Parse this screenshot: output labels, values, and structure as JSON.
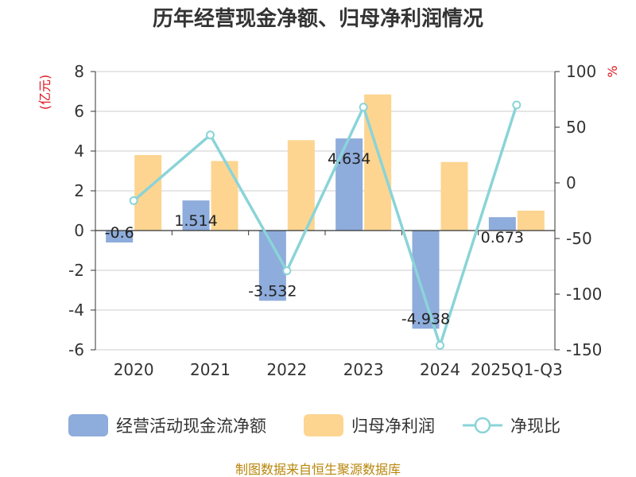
{
  "chart_data": {
    "type": "bar",
    "title": "历年经营现金净额、归母净利润情况",
    "categories": [
      "2020",
      "2021",
      "2022",
      "2023",
      "2024",
      "2025Q1-Q3"
    ],
    "left_axis": {
      "unit": "(亿元)",
      "ylim": [
        -6,
        8
      ],
      "ticks": [
        "8",
        "6",
        "4",
        "2",
        "0",
        "-2",
        "-4",
        "-6"
      ],
      "tick_values": [
        8,
        6,
        4,
        2,
        0,
        -2,
        -4,
        -6
      ]
    },
    "right_axis": {
      "unit": "%",
      "ylim": [
        -150,
        100
      ],
      "ticks": [
        "100",
        "50",
        "0",
        "-50",
        "-100",
        "-150"
      ],
      "tick_values": [
        100,
        50,
        0,
        -50,
        -100,
        -150
      ]
    },
    "series": [
      {
        "name": "经营活动现金流净额",
        "type": "bar",
        "axis": "left",
        "color": "#8eacdc",
        "values": [
          -0.6,
          1.514,
          -3.532,
          4.634,
          -4.938,
          0.673
        ],
        "labels": [
          "-0.6",
          "1.514",
          "-3.532",
          "4.634",
          "-4.938",
          "0.673"
        ]
      },
      {
        "name": "归母净利润",
        "type": "bar",
        "axis": "left",
        "color": "#fdd591",
        "values": [
          3.8,
          3.5,
          4.55,
          6.85,
          3.45,
          1.0
        ]
      },
      {
        "name": "净现比",
        "type": "line",
        "axis": "right",
        "color": "#8ad4d8",
        "values": [
          -16,
          43,
          -79,
          68,
          -146,
          70
        ]
      }
    ],
    "grid": true,
    "legend_position": "bottom",
    "source": "制图数据来自恒生聚源数据库"
  }
}
